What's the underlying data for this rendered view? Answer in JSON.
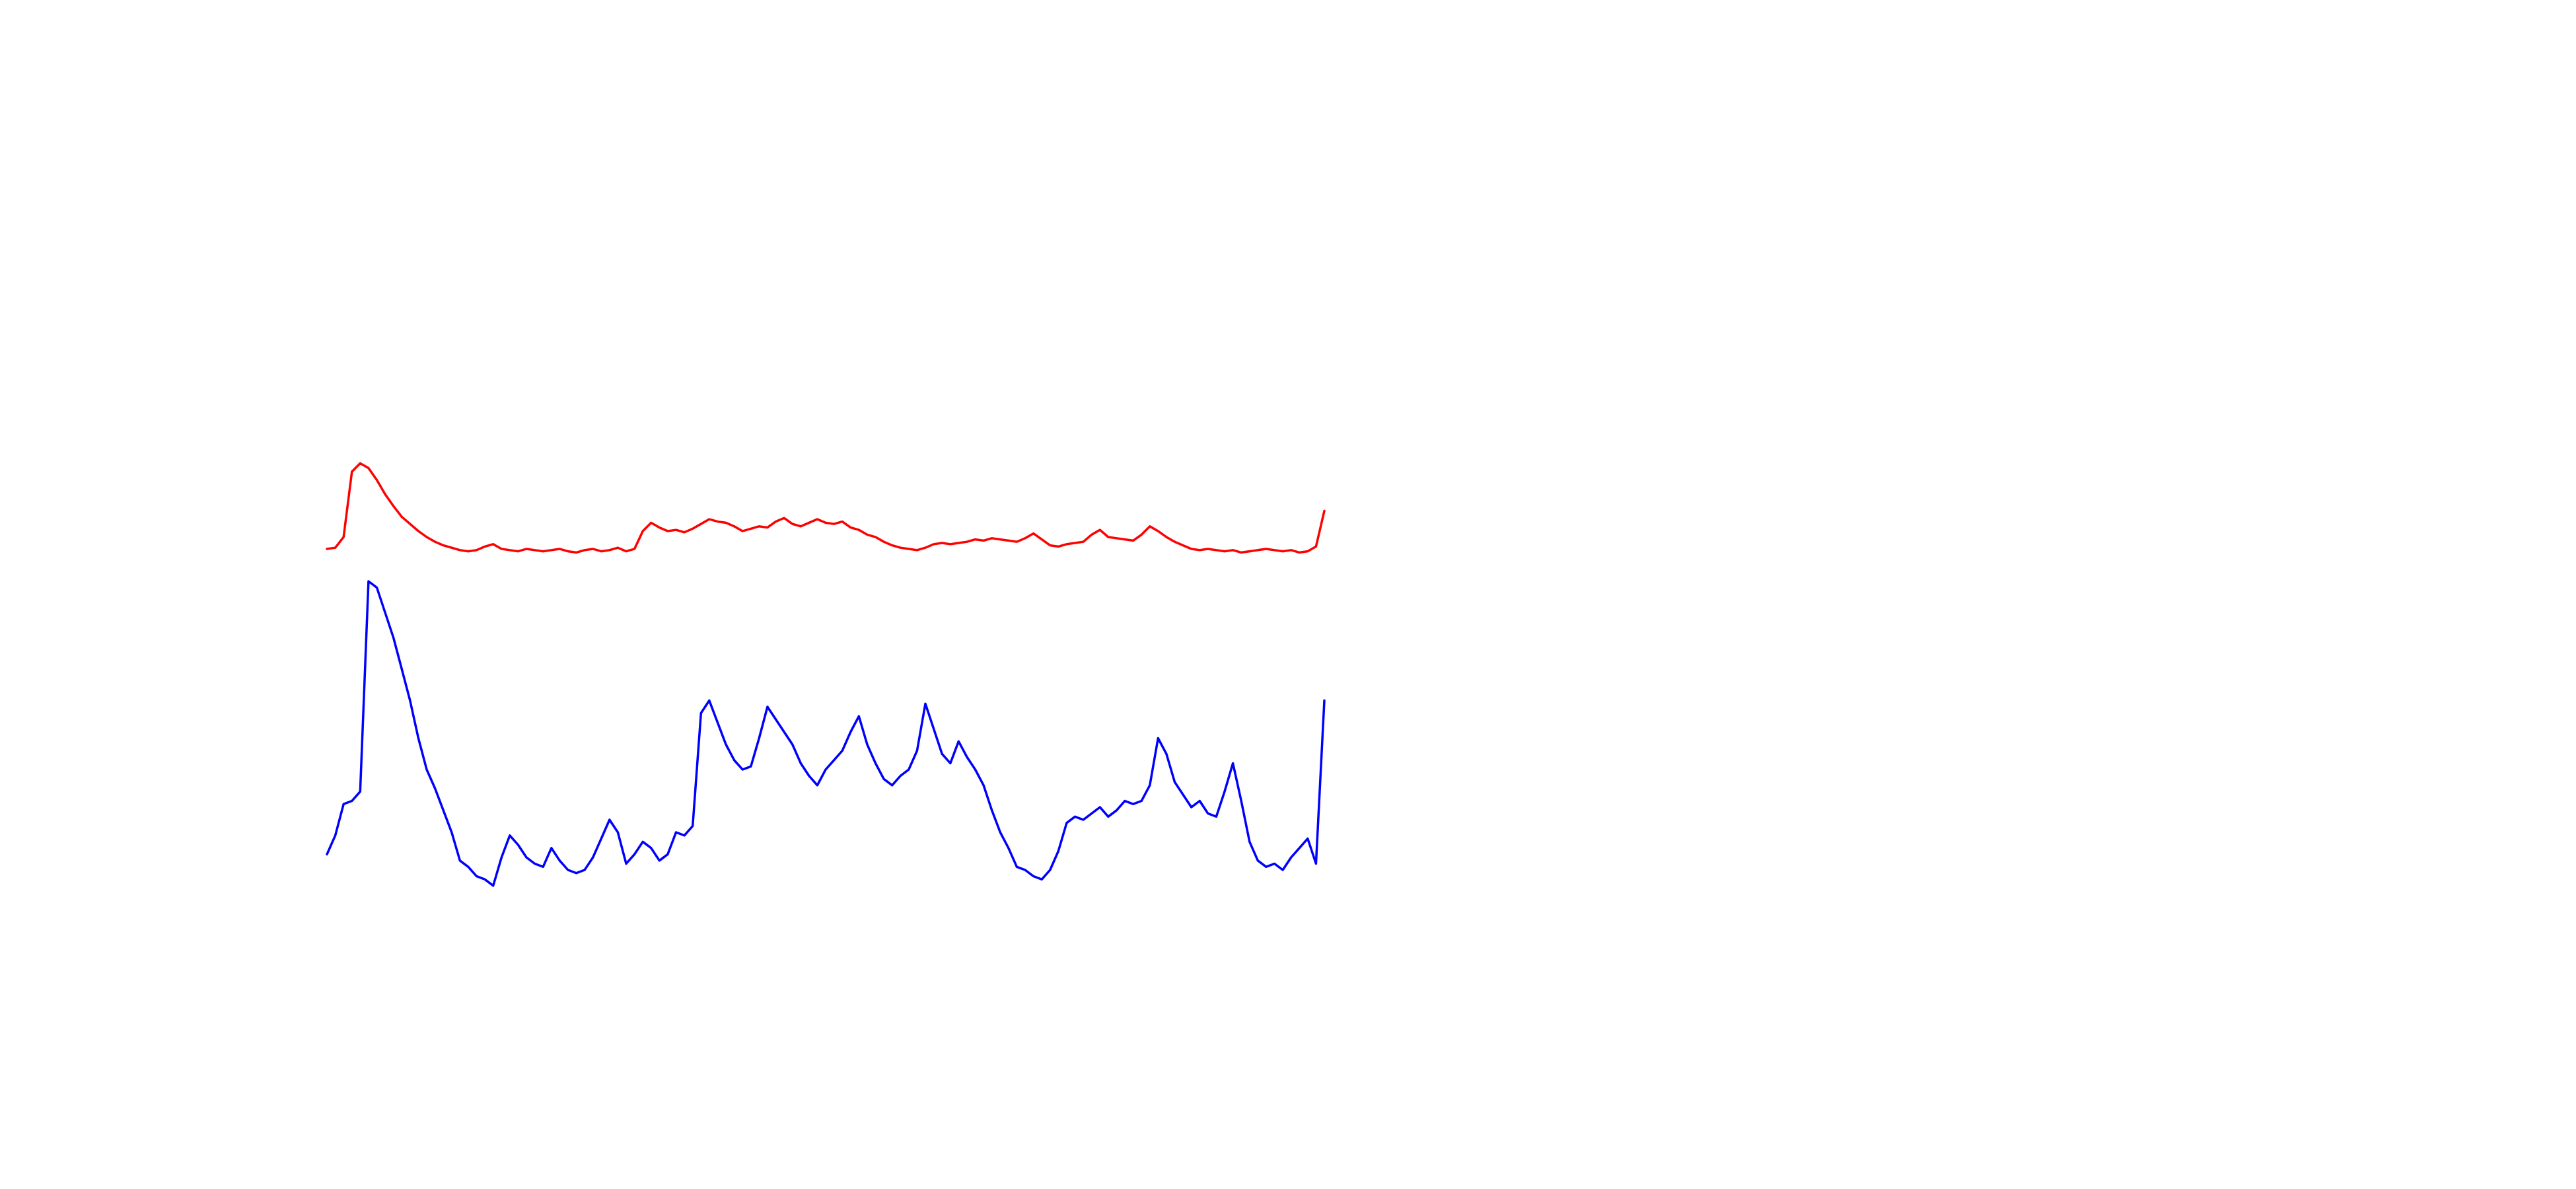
{
  "chart_data": {
    "type": "line",
    "title": "",
    "xlabel": "",
    "ylabel": "",
    "axes_visible": false,
    "grid": false,
    "legend": "none",
    "x": [
      0,
      1,
      2,
      3,
      4,
      5,
      6,
      7,
      8,
      9,
      10,
      11,
      12,
      13,
      14,
      15,
      16,
      17,
      18,
      19,
      20,
      21,
      22,
      23,
      24,
      25,
      26,
      27,
      28,
      29,
      30,
      31,
      32,
      33,
      34,
      35,
      36,
      37,
      38,
      39,
      40,
      41,
      42,
      43,
      44,
      45,
      46,
      47,
      48,
      49,
      50,
      51,
      52,
      53,
      54,
      55,
      56,
      57,
      58,
      59,
      60,
      61,
      62,
      63,
      64,
      65,
      66,
      67,
      68,
      69,
      70,
      71,
      72,
      73,
      74,
      75,
      76,
      77,
      78,
      79,
      80,
      81,
      82,
      83,
      84,
      85,
      86,
      87,
      88,
      89,
      90,
      91,
      92,
      93,
      94,
      95,
      96,
      97,
      98,
      99,
      100,
      101,
      102,
      103,
      104,
      105,
      106,
      107,
      108,
      109,
      110,
      111,
      112,
      113,
      114,
      115,
      116,
      117,
      118,
      119,
      120
    ],
    "xlim": [
      0,
      120
    ],
    "series": [
      {
        "color": "#ff0000",
        "values": [
          0.3,
          0.31,
          0.4,
          0.95,
          1.02,
          0.98,
          0.88,
          0.76,
          0.66,
          0.57,
          0.51,
          0.45,
          0.4,
          0.36,
          0.33,
          0.31,
          0.29,
          0.28,
          0.29,
          0.32,
          0.34,
          0.3,
          0.29,
          0.28,
          0.3,
          0.29,
          0.28,
          0.29,
          0.3,
          0.28,
          0.27,
          0.29,
          0.3,
          0.28,
          0.29,
          0.31,
          0.28,
          0.3,
          0.45,
          0.52,
          0.48,
          0.45,
          0.46,
          0.44,
          0.47,
          0.51,
          0.55,
          0.53,
          0.52,
          0.49,
          0.45,
          0.47,
          0.49,
          0.48,
          0.53,
          0.56,
          0.51,
          0.49,
          0.52,
          0.55,
          0.52,
          0.51,
          0.53,
          0.48,
          0.46,
          0.42,
          0.4,
          0.36,
          0.33,
          0.31,
          0.3,
          0.29,
          0.31,
          0.34,
          0.35,
          0.34,
          0.35,
          0.36,
          0.38,
          0.37,
          0.39,
          0.38,
          0.37,
          0.36,
          0.39,
          0.43,
          0.38,
          0.33,
          0.32,
          0.34,
          0.35,
          0.36,
          0.42,
          0.46,
          0.4,
          0.39,
          0.38,
          0.37,
          0.42,
          0.49,
          0.45,
          0.4,
          0.36,
          0.33,
          0.3,
          0.29,
          0.3,
          0.29,
          0.28,
          0.29,
          0.27,
          0.28,
          0.29,
          0.3,
          0.29,
          0.28,
          0.29,
          0.27,
          0.28,
          0.32,
          0.62
        ]
      },
      {
        "color": "#0000ff",
        "values": [
          0.13,
          0.19,
          0.29,
          0.3,
          0.33,
          1.0,
          0.98,
          0.9,
          0.82,
          0.72,
          0.62,
          0.5,
          0.4,
          0.34,
          0.27,
          0.2,
          0.11,
          0.09,
          0.06,
          0.05,
          0.03,
          0.12,
          0.19,
          0.16,
          0.12,
          0.1,
          0.09,
          0.15,
          0.11,
          0.08,
          0.07,
          0.08,
          0.12,
          0.18,
          0.24,
          0.2,
          0.1,
          0.13,
          0.17,
          0.15,
          0.11,
          0.13,
          0.2,
          0.19,
          0.22,
          0.58,
          0.62,
          0.55,
          0.48,
          0.43,
          0.4,
          0.41,
          0.5,
          0.6,
          0.56,
          0.52,
          0.48,
          0.42,
          0.38,
          0.35,
          0.4,
          0.43,
          0.46,
          0.52,
          0.57,
          0.48,
          0.42,
          0.37,
          0.35,
          0.38,
          0.4,
          0.46,
          0.61,
          0.53,
          0.45,
          0.42,
          0.49,
          0.44,
          0.4,
          0.35,
          0.27,
          0.2,
          0.15,
          0.09,
          0.08,
          0.06,
          0.05,
          0.08,
          0.14,
          0.23,
          0.25,
          0.24,
          0.26,
          0.28,
          0.25,
          0.27,
          0.3,
          0.29,
          0.3,
          0.35,
          0.5,
          0.45,
          0.36,
          0.32,
          0.28,
          0.3,
          0.26,
          0.25,
          0.33,
          0.42,
          0.3,
          0.17,
          0.11,
          0.09,
          0.1,
          0.08,
          0.12,
          0.15,
          0.18,
          0.1,
          0.62
        ]
      }
    ]
  }
}
